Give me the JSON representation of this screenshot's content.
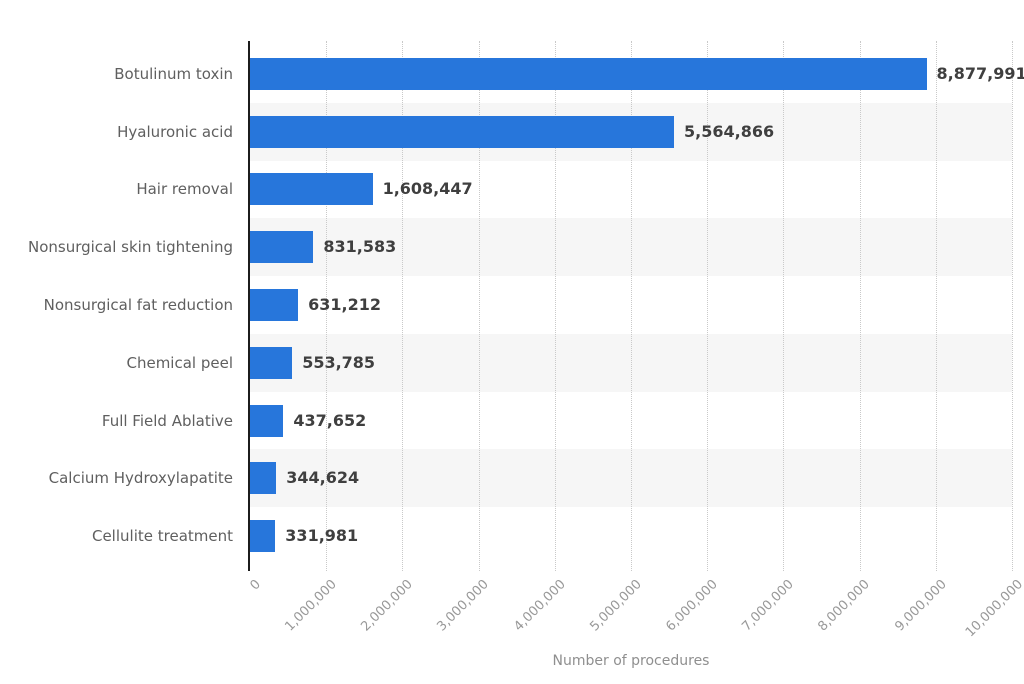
{
  "chart_data": {
    "type": "bar",
    "orientation": "horizontal",
    "title": "",
    "xlabel": "Number of procedures",
    "ylabel": "",
    "xlim": [
      0,
      10000000
    ],
    "grid": "vertical-dotted",
    "legend": "none",
    "categories": [
      "Botulinum toxin",
      "Hyaluronic acid",
      "Hair removal",
      "Nonsurgical skin tightening",
      "Nonsurgical fat reduction",
      "Chemical peel",
      "Full Field Ablative",
      "Calcium Hydroxylapatite",
      "Cellulite treatment"
    ],
    "values": [
      8877991,
      5564866,
      1608447,
      831583,
      631212,
      553785,
      437652,
      344624,
      331981
    ],
    "value_labels": [
      "8,877,991",
      "5,564,866",
      "1,608,447",
      "831,583",
      "631,212",
      "553,785",
      "437,652",
      "344,624",
      "331,981"
    ],
    "x_tick_labels": [
      "0",
      "1,000,000",
      "2,000,000",
      "3,000,000",
      "4,000,000",
      "5,000,000",
      "6,000,000",
      "7,000,000",
      "8,000,000",
      "9,000,000",
      "10,000,000"
    ],
    "x_tick_values": [
      0,
      1000000,
      2000000,
      3000000,
      4000000,
      5000000,
      6000000,
      7000000,
      8000000,
      9000000,
      10000000
    ],
    "colors": {
      "bar": "#2776db",
      "stripe": "#f6f6f6",
      "gridline": "#c9c9c9",
      "axis_line": "#1c1c1c",
      "category_label": "#5f5f5f",
      "value_label": "#3f3f3f",
      "tick_label": "#999999",
      "axis_title": "#8f8f8f"
    }
  }
}
